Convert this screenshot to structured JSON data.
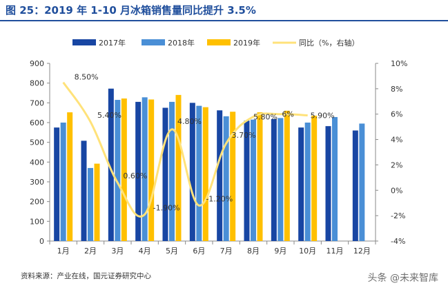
{
  "title": "图 25：2019 年 1-10 月冰箱销售量同比提升 3.5%",
  "source": "资料来源：产业在线，国元证券研究中心",
  "watermark": "头条 @未来智库",
  "colors": {
    "title": "#1f4e9c",
    "s2017": "#1846a3",
    "s2018": "#4a8fd6",
    "s2019": "#ffc000",
    "yoy": "#ffe27a"
  },
  "chart_data": {
    "type": "bar",
    "categories": [
      "1月",
      "2月",
      "3月",
      "4月",
      "5月",
      "6月",
      "7月",
      "8月",
      "9月",
      "10月",
      "11月",
      "12月"
    ],
    "series": [
      {
        "name": "2017年",
        "kind": "bar",
        "values": [
          575,
          508,
          772,
          705,
          675,
          700,
          662,
          610,
          618,
          575,
          582,
          560
        ]
      },
      {
        "name": "2018年",
        "kind": "bar",
        "values": [
          600,
          370,
          715,
          728,
          705,
          685,
          632,
          615,
          623,
          600,
          628,
          595
        ]
      },
      {
        "name": "2019年",
        "kind": "bar",
        "values": [
          652,
          392,
          722,
          717,
          740,
          678,
          655,
          652,
          660,
          635,
          null,
          null
        ]
      },
      {
        "name": "同比（%，右轴）",
        "kind": "line",
        "axis": "right",
        "values": [
          8.5,
          5.4,
          0.6,
          -1.9,
          4.8,
          -1.2,
          3.7,
          5.8,
          6.0,
          5.9,
          null,
          null
        ]
      }
    ],
    "data_labels": [
      "8.50%",
      "5.40%",
      "0.60%",
      "-1.90%",
      "4.80%",
      "-1.20%",
      "3.70%",
      "5.80%",
      "6%",
      "5.90%"
    ],
    "ylim": [
      0,
      900
    ],
    "y_ticks": [
      "0",
      "100",
      "200",
      "300",
      "400",
      "500",
      "600",
      "700",
      "800",
      "900"
    ],
    "y2lim": [
      -4,
      10
    ],
    "y2_ticks": [
      "-4%",
      "-2%",
      "0%",
      "2%",
      "4%",
      "6%",
      "8%",
      "10%"
    ],
    "legend_position": "top",
    "grid": false
  }
}
